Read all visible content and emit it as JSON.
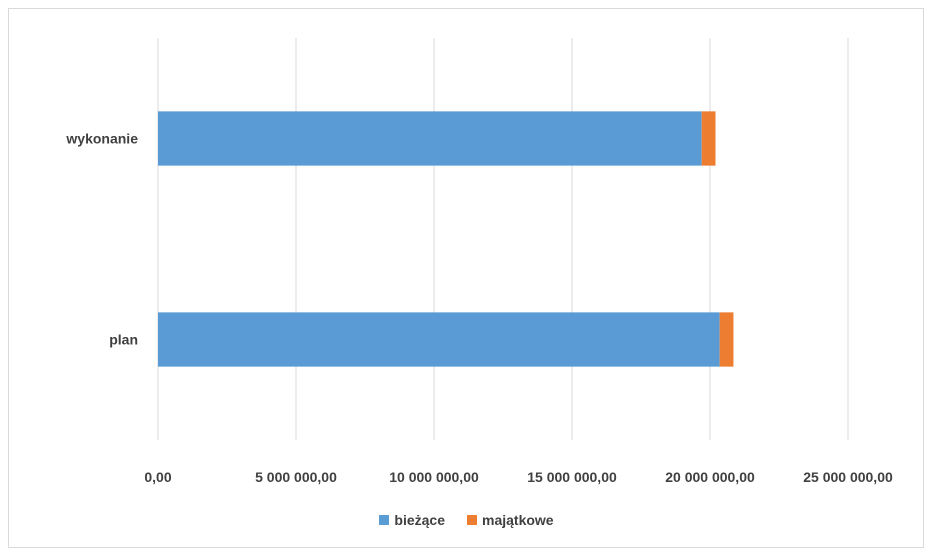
{
  "chart_data": {
    "type": "bar",
    "orientation": "horizontal",
    "stacked": true,
    "categories": [
      "plan",
      "wykonanie"
    ],
    "series": [
      {
        "name": "bieżące",
        "values": [
          20350000,
          19700000
        ],
        "color": "#5b9bd5"
      },
      {
        "name": "majątkowe",
        "values": [
          500000,
          500000
        ],
        "color": "#ed7d31"
      }
    ],
    "xlim": [
      0,
      25000000
    ],
    "x_ticks": [
      0,
      5000000,
      10000000,
      15000000,
      20000000,
      25000000
    ],
    "x_tick_labels": [
      "0,00",
      "5 000 000,00",
      "10 000 000,00",
      "15 000 000,00",
      "20 000 000,00",
      "25 000 000,00"
    ],
    "title": "",
    "xlabel": "",
    "ylabel": "",
    "grid": "vertical",
    "legend_position": "bottom"
  }
}
